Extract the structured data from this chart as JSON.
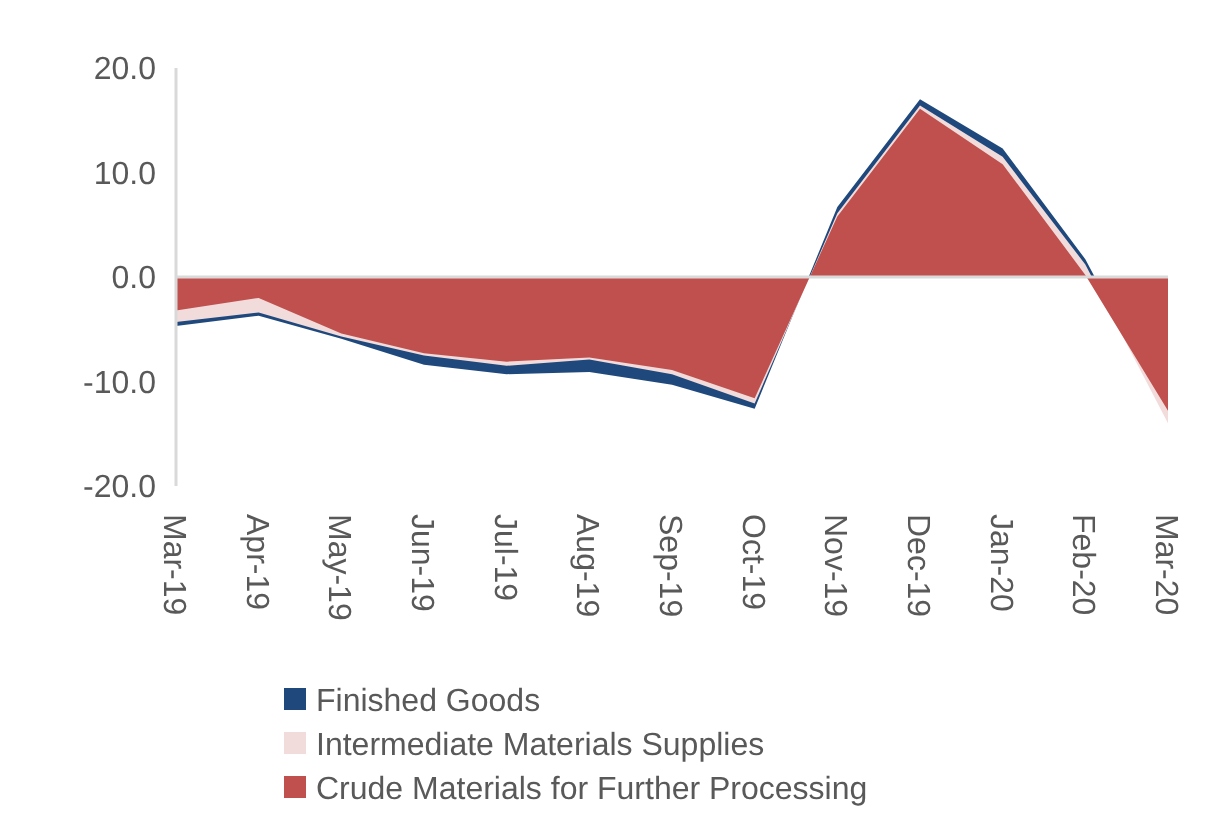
{
  "chart_data": {
    "type": "area",
    "categories": [
      "Mar-19",
      "Apr-19",
      "May-19",
      "Jun-19",
      "Jul-19",
      "Aug-19",
      "Sep-19",
      "Oct-19",
      "Nov-19",
      "Dec-19",
      "Jan-20",
      "Feb-20",
      "Mar-20"
    ],
    "series": [
      {
        "name": "Finished Goods",
        "color": "#1f497d",
        "values": [
          -4.7,
          -3.7,
          -5.9,
          -8.4,
          -9.3,
          -9.1,
          -10.3,
          -12.6,
          6.7,
          17.0,
          12.3,
          1.7,
          -13.2
        ]
      },
      {
        "name": "Intermediate Materials Supplies",
        "color": "#f2dcdb",
        "values": [
          -4.3,
          -3.4,
          -5.7,
          -7.5,
          -8.5,
          -7.9,
          -9.3,
          -12.1,
          6.1,
          16.4,
          11.5,
          1.2,
          -14.0
        ]
      },
      {
        "name": "Crude Materials for Further Processing",
        "color": "#c0504d",
        "values": [
          -3.2,
          -2.0,
          -5.4,
          -7.3,
          -8.1,
          -7.7,
          -8.9,
          -11.6,
          5.8,
          16.1,
          10.8,
          0.2,
          -12.8
        ]
      }
    ],
    "ylim": [
      -20,
      20
    ],
    "yticks": [
      {
        "value": -20,
        "label": "-20.0"
      },
      {
        "value": -10,
        "label": "-10.0"
      },
      {
        "value": 0,
        "label": "0.0"
      },
      {
        "value": 10,
        "label": "10.0"
      },
      {
        "value": 20,
        "label": "20.0"
      }
    ],
    "legend": "bottom"
  }
}
